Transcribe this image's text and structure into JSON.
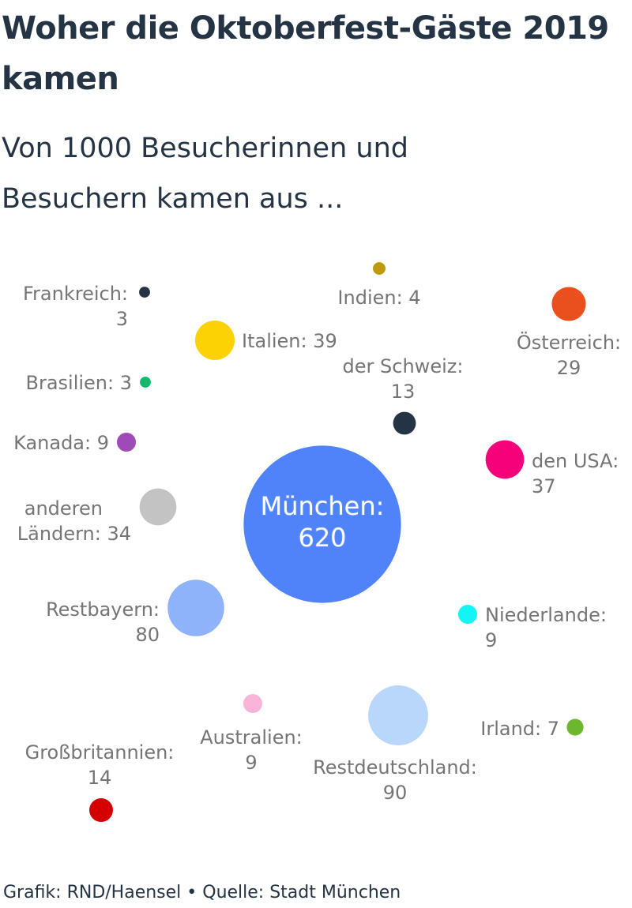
{
  "title": "Woher die Oktoberfest-Gäste 2019 kamen",
  "subtitle": "Von 1000 Besucherinnen und Besuchern kamen aus ...",
  "footer": "Grafik: RND/Haensel • Quelle: Stadt München",
  "chart_data": {
    "type": "bubble",
    "title": "Woher die Oktoberfest-Gäste 2019 kamen",
    "subtitle": "Von 1000 Besucherinnen und Besuchern kamen aus ...",
    "unit": "von 1000",
    "points": [
      {
        "name": "München",
        "value": 620,
        "color": "#5082fa"
      },
      {
        "name": "Restdeutschland",
        "value": 90,
        "color": "#b9d6fb"
      },
      {
        "name": "Restbayern",
        "value": 80,
        "color": "#8fb3fa"
      },
      {
        "name": "Italien",
        "value": 39,
        "color": "#fcd205"
      },
      {
        "name": "den USA",
        "value": 37,
        "color": "#f5027b"
      },
      {
        "name": "anderen Ländern",
        "value": 34,
        "color": "#c3c3c3"
      },
      {
        "name": "Österreich",
        "value": 29,
        "color": "#e9501e"
      },
      {
        "name": "Großbritannien",
        "value": 14,
        "color": "#d40000"
      },
      {
        "name": "der Schweiz",
        "value": 13,
        "color": "#243445"
      },
      {
        "name": "Kanada",
        "value": 9,
        "color": "#9f4ab6"
      },
      {
        "name": "Niederlande",
        "value": 9,
        "color": "#13f4f5"
      },
      {
        "name": "Australien",
        "value": 9,
        "color": "#fab4da"
      },
      {
        "name": "Irland",
        "value": 7,
        "color": "#6db72e"
      },
      {
        "name": "Indien",
        "value": 4,
        "color": "#bf9a0d"
      },
      {
        "name": "Frankreich",
        "value": 3,
        "color": "#243445"
      },
      {
        "name": "Brasilien",
        "value": 3,
        "color": "#14b76b"
      }
    ]
  }
}
